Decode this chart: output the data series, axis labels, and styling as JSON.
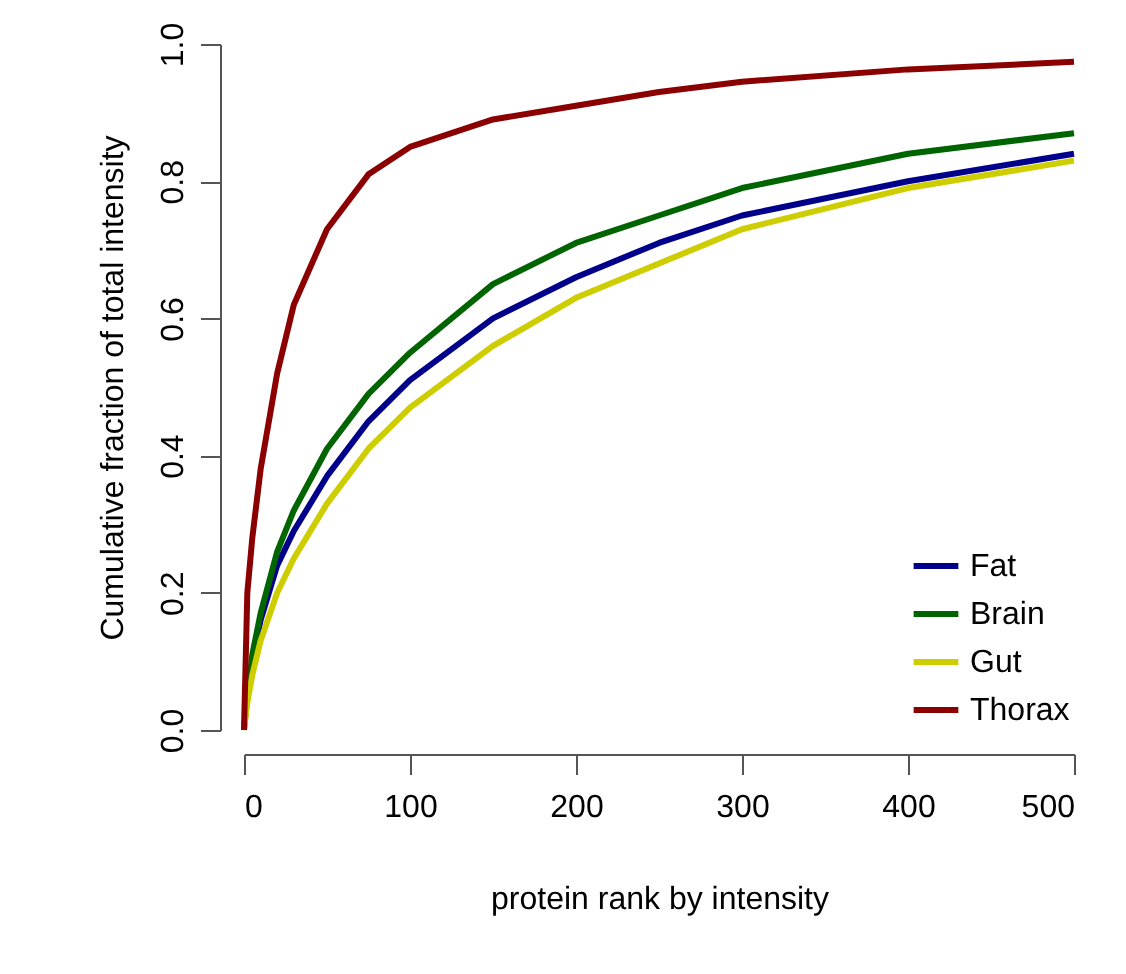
{
  "chart_data": {
    "type": "line",
    "xlabel": "protein rank by intensity",
    "ylabel": "Cumulative fraction of total intensity",
    "xlim": [
      0,
      500
    ],
    "ylim": [
      0,
      1
    ],
    "xticks": [
      0,
      100,
      200,
      300,
      400,
      500
    ],
    "yticks": [
      {
        "value": 0,
        "label": "0.0"
      },
      {
        "value": 0.2,
        "label": "0.2"
      },
      {
        "value": 0.4,
        "label": "0.4"
      },
      {
        "value": 0.6,
        "label": "0.6"
      },
      {
        "value": 0.8,
        "label": "0.8"
      },
      {
        "value": 1,
        "label": "1.0"
      }
    ],
    "grid": false,
    "legend": "bottom right",
    "line_style": "solid",
    "marker": "none",
    "x": [
      0,
      2,
      5,
      10,
      20,
      30,
      50,
      75,
      100,
      150,
      200,
      250,
      300,
      400,
      500
    ],
    "series": [
      {
        "name": "Fat",
        "color": "#00008b",
        "values": [
          null,
          null,
          0.1,
          0.16,
          0.24,
          0.29,
          0.37,
          0.45,
          0.51,
          0.6,
          0.66,
          0.71,
          0.75,
          0.8,
          0.84
        ]
      },
      {
        "name": "Brain",
        "color": "#006400",
        "values": [
          0,
          0.05,
          0.11,
          0.17,
          0.26,
          0.32,
          0.41,
          0.49,
          0.55,
          0.65,
          0.71,
          0.75,
          0.79,
          0.84,
          0.87
        ]
      },
      {
        "name": "Gut",
        "color": "#cdcd00",
        "values": [
          0,
          0.04,
          0.08,
          0.13,
          0.2,
          0.25,
          0.33,
          0.41,
          0.47,
          0.56,
          0.63,
          0.68,
          0.73,
          0.79,
          0.83
        ]
      },
      {
        "name": "Thorax",
        "color": "#8b0000",
        "values": [
          0,
          0.2,
          0.28,
          0.38,
          0.52,
          0.62,
          0.73,
          0.81,
          0.85,
          0.89,
          0.91,
          0.93,
          0.945,
          0.963,
          0.974
        ]
      }
    ]
  }
}
